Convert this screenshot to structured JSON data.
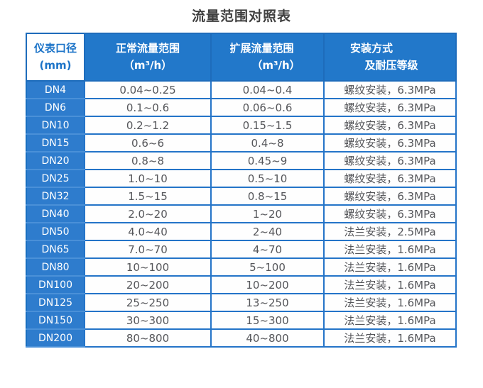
{
  "page_title": "流量范围对照表",
  "colors": {
    "outer": "#1a6fc0",
    "grid": "#2474c8",
    "header-sep": "#1e6cbb",
    "row-sep": "#4a90d8",
    "header-blue": "#2278ca",
    "row-label-blue": "#2e7ccd",
    "data-text": "#55565a",
    "header-col1-text": "#1d74c8",
    "title-text": "#3f3f3f"
  },
  "chart_data": {
    "type": "table",
    "title": "流量范围对照表",
    "columns": [
      {
        "id": "dn",
        "line1": "仪表口径",
        "line2": "(mm)"
      },
      {
        "id": "normal",
        "line1": "正常流量范围",
        "line2": "（m³/h）"
      },
      {
        "id": "extended",
        "line1": "扩展流量范围",
        "line2": "（m³/h）"
      },
      {
        "id": "install",
        "line1": "安装方式",
        "line2": "及耐压等级"
      }
    ],
    "rows": [
      {
        "dn": "DN4",
        "normal": "0.04~0.25",
        "extended": "0.04~0.4",
        "install": "螺纹安装，6.3MPa"
      },
      {
        "dn": "DN6",
        "normal": "0.1~0.6",
        "extended": "0.06~0.6",
        "install": "螺纹安装，6.3MPa"
      },
      {
        "dn": "DN10",
        "normal": "0.2~1.2",
        "extended": "0.15~1.5",
        "install": "螺纹安装，6.3MPa"
      },
      {
        "dn": "DN15",
        "normal": "0.6~6",
        "extended": "0.4~8",
        "install": "螺纹安装，6.3MPa"
      },
      {
        "dn": "DN20",
        "normal": "0.8~8",
        "extended": "0.45~9",
        "install": "螺纹安装，6.3MPa"
      },
      {
        "dn": "DN25",
        "normal": "1.0~10",
        "extended": "0.5~10",
        "install": "螺纹安装，6.3MPa"
      },
      {
        "dn": "DN32",
        "normal": "1.5~15",
        "extended": "0.8~15",
        "install": "螺纹安装，6.3MPa"
      },
      {
        "dn": "DN40",
        "normal": "2.0~20",
        "extended": "1~20",
        "install": "螺纹安装，6.3MPa"
      },
      {
        "dn": "DN50",
        "normal": "4.0~40",
        "extended": "2~40",
        "install": "法兰安装，2.5MPa"
      },
      {
        "dn": "DN65",
        "normal": "7.0~70",
        "extended": "4~70",
        "install": "法兰安装，1.6MPa"
      },
      {
        "dn": "DN80",
        "normal": "10~100",
        "extended": "5~100",
        "install": "法兰安装，1.6MPa"
      },
      {
        "dn": "DN100",
        "normal": "20~200",
        "extended": "10~200",
        "install": "法兰安装，1.6MPa"
      },
      {
        "dn": "DN125",
        "normal": "25~250",
        "extended": "13~250",
        "install": "法兰安装，1.6MPa"
      },
      {
        "dn": "DN150",
        "normal": "30~300",
        "extended": "15~300",
        "install": "法兰安装，1.6MPa"
      },
      {
        "dn": "DN200",
        "normal": "80~800",
        "extended": "40~800",
        "install": "法兰安装，1.6MPa"
      }
    ]
  }
}
